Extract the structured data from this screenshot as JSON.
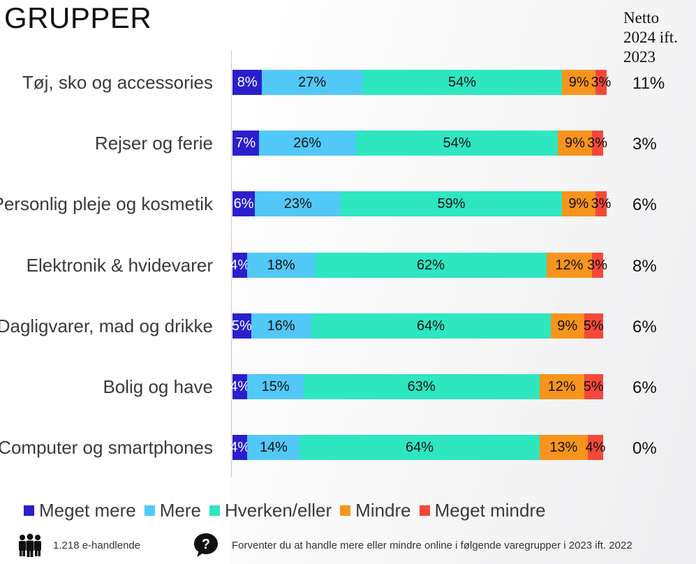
{
  "title": "GRUPPER",
  "netto_header": [
    "Netto",
    "2024 ift.",
    "2023"
  ],
  "legend": [
    {
      "label": "Meget mere",
      "color": "#2b1fcc"
    },
    {
      "label": "Mere",
      "color": "#52c8f7"
    },
    {
      "label": "Hverken/eller",
      "color": "#2ee6c0"
    },
    {
      "label": "Mindre",
      "color": "#f7941d"
    },
    {
      "label": "Meget mindre",
      "color": "#f5483a"
    }
  ],
  "chart_data": {
    "type": "bar",
    "orientation": "horizontal-stacked",
    "categories": [
      "Tøj, sko og accessories",
      "Rejser og ferie",
      "Personlig pleje og kosmetik",
      "Elektronik & hvidevarer",
      "Dagligvarer, mad og drikke",
      "Bolig og have",
      "Computer og smartphones"
    ],
    "series": [
      {
        "name": "Meget mere",
        "values": [
          8,
          7,
          6,
          4,
          5,
          4,
          4
        ],
        "labels": [
          "8%",
          "7%",
          "6%",
          "4%",
          "5%",
          "4%",
          "4%"
        ]
      },
      {
        "name": "Mere",
        "values": [
          27,
          26,
          23,
          18,
          16,
          15,
          14
        ],
        "labels": [
          "27%",
          "26%",
          "23%",
          "18%",
          "16%",
          "15%",
          "14%"
        ]
      },
      {
        "name": "Hverken/eller",
        "values": [
          54,
          54,
          59,
          62,
          64,
          63,
          64
        ],
        "labels": [
          "54%",
          "54%",
          "59%",
          "62%",
          "64%",
          "63%",
          "64%"
        ]
      },
      {
        "name": "Mindre",
        "values": [
          9,
          9,
          9,
          12,
          9,
          12,
          13
        ],
        "labels": [
          "9%",
          "9%",
          "9%",
          "12%",
          "9%",
          "12%",
          "13%"
        ]
      },
      {
        "name": "Meget mindre",
        "values": [
          3,
          3,
          3,
          3,
          5,
          5,
          4
        ],
        "labels": [
          "3%",
          "3%",
          "3%",
          "3%",
          "5%",
          "5%",
          "4%"
        ]
      }
    ],
    "netto": [
      "11%",
      "3%",
      "6%",
      "8%",
      "6%",
      "6%",
      "0%"
    ],
    "xlim": [
      0,
      100
    ]
  },
  "footer": {
    "respondents": "1.218 e-handlende",
    "question": "Forventer du at handle mere eller mindre online i følgende varegrupper i 2023 ift. 2022"
  }
}
